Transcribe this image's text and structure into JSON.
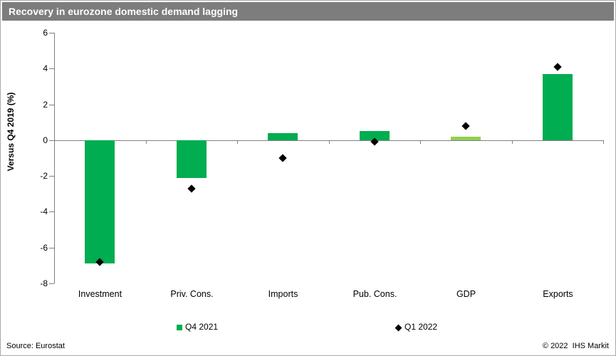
{
  "header": {
    "title": "Recovery in eurozone domestic demand lagging"
  },
  "colors": {
    "title_bar_bg": "#7d7d7d",
    "title_text": "#ffffff",
    "axis": "#808080",
    "bar_green": "#00ad50",
    "bar_light_green": "#92d050",
    "marker_black": "#000000"
  },
  "chart_data": {
    "type": "bar",
    "title": "Recovery in eurozone domestic demand lagging",
    "categories": [
      "Investment",
      "Priv. Cons.",
      "Imports",
      "Pub. Cons.",
      "GDP",
      "Exports"
    ],
    "series": [
      {
        "name": "Q4 2021",
        "type": "bar",
        "values": [
          -6.9,
          -2.1,
          0.4,
          0.5,
          0.2,
          3.7
        ],
        "bar_colors": [
          "#00ad50",
          "#00ad50",
          "#00ad50",
          "#00ad50",
          "#92d050",
          "#00ad50"
        ]
      },
      {
        "name": "Q1 2022",
        "type": "scatter",
        "marker": "diamond",
        "values": [
          -6.8,
          -2.7,
          -1.0,
          -0.1,
          0.8,
          4.1
        ],
        "color": "#000000"
      }
    ],
    "xlabel": "",
    "ylabel": "Versus Q4 2019 (%)",
    "ylim": [
      -8,
      6
    ],
    "yticks": [
      6,
      4,
      2,
      0,
      -2,
      -4,
      -6,
      -8
    ],
    "grid": false,
    "legend_position": "bottom"
  },
  "legend": {
    "items": [
      {
        "label": "Q4 2021",
        "marker": "square",
        "color": "#00ad50"
      },
      {
        "label": "Q1 2022",
        "marker": "diamond",
        "color": "#000000"
      }
    ]
  },
  "footer": {
    "source": "Source: Eurostat",
    "copyright": "© 2022  IHS Markit"
  }
}
